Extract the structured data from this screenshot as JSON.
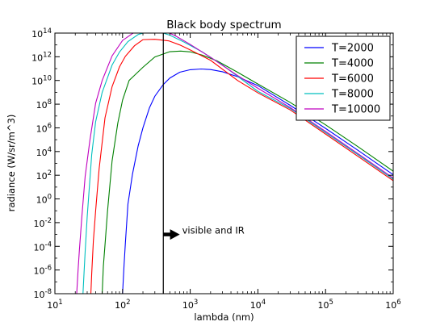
{
  "chart_data": {
    "type": "line",
    "title": "Black body spectrum",
    "xlabel": "lambda (nm)",
    "ylabel": "radiance (W/sr/m^3)",
    "xscale": "log",
    "yscale": "log",
    "xlim": [
      10,
      1000000
    ],
    "ylim": [
      1e-08,
      100000000000000.0
    ],
    "x_ticks": [
      {
        "base": "10",
        "exp": "1",
        "value": 10
      },
      {
        "base": "10",
        "exp": "2",
        "value": 100
      },
      {
        "base": "10",
        "exp": "3",
        "value": 1000
      },
      {
        "base": "10",
        "exp": "4",
        "value": 10000
      },
      {
        "base": "10",
        "exp": "5",
        "value": 100000
      },
      {
        "base": "10",
        "exp": "6",
        "value": 1000000
      }
    ],
    "y_ticks": [
      {
        "base": "10",
        "exp": "-8",
        "value": 1e-08
      },
      {
        "base": "10",
        "exp": "-6",
        "value": 1e-06
      },
      {
        "base": "10",
        "exp": "-4",
        "value": 0.0001
      },
      {
        "base": "10",
        "exp": "-2",
        "value": 0.01
      },
      {
        "base": "10",
        "exp": "0",
        "value": 1
      },
      {
        "base": "10",
        "exp": "2",
        "value": 100
      },
      {
        "base": "10",
        "exp": "4",
        "value": 10000
      },
      {
        "base": "10",
        "exp": "6",
        "value": 1000000.0
      },
      {
        "base": "10",
        "exp": "8",
        "value": 100000000.0
      },
      {
        "base": "10",
        "exp": "10",
        "value": 10000000000.0
      },
      {
        "base": "10",
        "exp": "12",
        "value": 1000000000000.0
      },
      {
        "base": "10",
        "exp": "14",
        "value": 100000000000000.0
      }
    ],
    "grid": false,
    "legend_position": "top-right",
    "series": [
      {
        "name": "T=2000",
        "color": "#0000ff",
        "x": [
          100,
          105,
          110,
          120,
          140,
          170,
          200,
          250,
          300,
          400,
          500,
          700,
          1000,
          1449,
          2000,
          3000,
          5000,
          10000,
          30000,
          100000,
          300000,
          1000000
        ],
        "y": [
          1e-08,
          2.2e-06,
          0.00018,
          0.36,
          120.0,
          30000.0,
          1000000.0,
          50000000.0,
          470000000.0,
          4600000000.0,
          16000000000.0,
          50000000000.0,
          81000000000.0,
          93000000000.0,
          84000000000.0,
          54000000000.0,
          21000000000.0,
          3700000000.0,
          80000000.0,
          900000.0,
          13000.0,
          110.0
        ]
      },
      {
        "name": "T=4000",
        "color": "#008000",
        "x": [
          50,
          52,
          55,
          60,
          70,
          85,
          100,
          125,
          150,
          200,
          300,
          500,
          724,
          1000,
          1500,
          2500,
          5000,
          10000,
          30000,
          100000,
          300000,
          1000000
        ],
        "y": [
          1e-08,
          2e-06,
          0.00013,
          0.1,
          1600.0,
          2500000.0,
          220000000.0,
          10000000000.0,
          27000000000.0,
          130000000000.0,
          970000000000.0,
          2700000000000.0,
          3000000000000.0,
          2600000000000.0,
          1400000000000.0,
          450000000000.0,
          50000000000.0,
          5000000000.0,
          140000000.0,
          1800000.0,
          26000.0,
          220.0
        ]
      },
      {
        "name": "T=6000",
        "color": "#ff0000",
        "x": [
          34,
          35,
          37,
          40,
          45,
          55,
          70,
          90,
          110,
          150,
          200,
          300,
          483,
          700,
          1000,
          2000,
          5000,
          10000,
          30000,
          100000,
          300000,
          1000000
        ],
        "y": [
          1e-08,
          5e-07,
          0.00027,
          0.1,
          330.0,
          7000000.0,
          3000000000.0,
          140000000000.0,
          1100000000000.0,
          8500000000000.0,
          28000000000000.0,
          30000000000000.0,
          22000000000000.0,
          10000000000000.0,
          3800000000000.0,
          500000000000.0,
          10000000000.0,
          900000000.0,
          33000000.0,
          300000.0,
          4000.0,
          35.0
        ]
      },
      {
        "name": "T=8000",
        "color": "#00bfbf",
        "x": [
          26,
          27,
          28,
          30,
          35,
          40,
          50,
          70,
          90,
          120,
          170,
          250,
          362,
          500,
          800,
          1500,
          3000,
          10000,
          30000,
          100000,
          300000,
          1000000
        ],
        "y": [
          1e-08,
          7e-07,
          3.5e-05,
          0.03,
          5600.0,
          3300000.0,
          1000000000.0,
          200000000000.0,
          2500000000000.0,
          19000000000000.0,
          76000000000000.0,
          140000000000000.0,
          120000000000000.0,
          66000000000000.0,
          18000000000000.0,
          2600000000000.0,
          200000000000.0,
          1200000000.0,
          43000000.0,
          400000.0,
          5500.0,
          46.0
        ]
      },
      {
        "name": "T=10000",
        "color": "#bf00bf",
        "x": [
          21,
          22,
          23,
          25,
          28,
          33,
          40,
          50,
          70,
          100,
          150,
          220,
          290,
          400,
          600,
          1000,
          2000,
          5000,
          10000,
          30000,
          100000,
          300000,
          1000000
        ],
        "y": [
          1e-08,
          1e-06,
          4.6e-05,
          0.03,
          80.0,
          100000.0,
          120000000.0,
          10000000000.0,
          1200000000000.0,
          24000000000000.0,
          120000000000000.0,
          260000000000000.0,
          240000000000000.0,
          170000000000000.0,
          60000000000000.0,
          11000000000000.0,
          900000000000.0,
          26000000000.0,
          2200000000.0,
          52000000.0,
          500000.0,
          6800.0,
          58.0
        ]
      }
    ],
    "annotations": [
      {
        "type": "vline",
        "x": 400
      },
      {
        "type": "arrow",
        "text": "visible and IR",
        "x_start": 400,
        "x_end": 700,
        "y": 0.001
      }
    ]
  }
}
